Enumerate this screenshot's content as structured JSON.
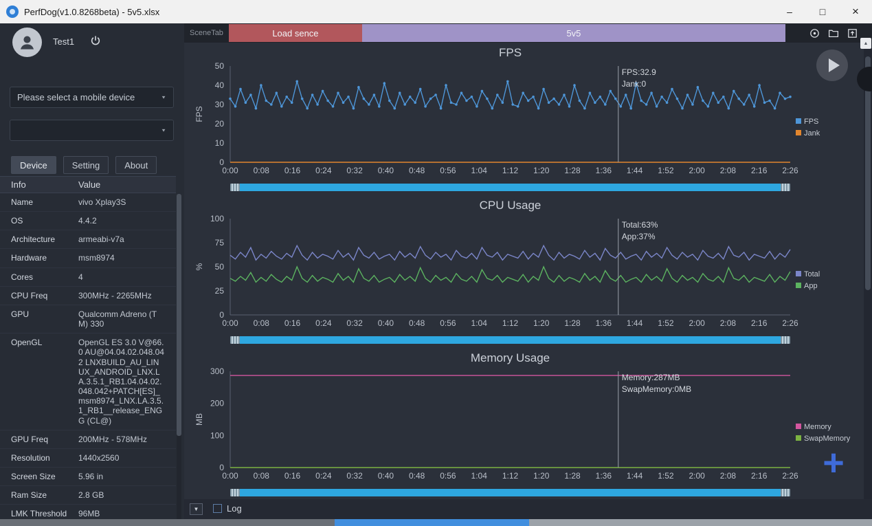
{
  "titlebar": {
    "title": "PerfDog(v1.0.8268beta) - 5v5.xlsx"
  },
  "icons": {
    "minimize": "–",
    "maximize": "□",
    "close": "×",
    "dropdown_arrow": "▼",
    "expand_arrow": "▼",
    "scroll_up": "▲",
    "plus": "+"
  },
  "sidebar": {
    "username": "Test1",
    "device_placeholder": "Please select a mobile device",
    "device_value": "",
    "tabs": [
      {
        "label": "Device",
        "active": true
      },
      {
        "label": "Setting",
        "active": false
      },
      {
        "label": "About",
        "active": false
      }
    ],
    "info_table": {
      "headers": [
        "Info",
        "Value"
      ],
      "rows": [
        {
          "info": "Name",
          "value": "vivo Xplay3S"
        },
        {
          "info": "OS",
          "value": "4.4.2"
        },
        {
          "info": "Architecture",
          "value": "armeabi-v7a"
        },
        {
          "info": "Hardware",
          "value": "msm8974"
        },
        {
          "info": "Cores",
          "value": "4"
        },
        {
          "info": "CPU Freq",
          "value": "300MHz - 2265MHz"
        },
        {
          "info": "GPU",
          "value": "Qualcomm Adreno (TM) 330"
        },
        {
          "info": "OpenGL",
          "value": "OpenGL ES 3.0 V@66.0 AU@04.04.02.048.042 LNXBUILD_AU_LINUX_ANDROID_LNX.LA.3.5.1_RB1.04.04.02.048.042+PATCH[ES]_msm8974_LNX.LA.3.5.1_RB1__release_ENGG (CL@)"
        },
        {
          "info": "GPU Freq",
          "value": "200MHz - 578MHz"
        },
        {
          "info": "Resolution",
          "value": "1440x2560"
        },
        {
          "info": "Screen Size",
          "value": "5.96 in"
        },
        {
          "info": "Ram Size",
          "value": "2.8 GB"
        },
        {
          "info": "LMK Threshold",
          "value": "96MB"
        }
      ]
    }
  },
  "scenebar": {
    "label": "SceneTab",
    "scenes": [
      {
        "label": "Load sence",
        "color": "#b2575c"
      },
      {
        "label": "5v5",
        "color": "#9f93c7"
      }
    ]
  },
  "footer": {
    "log_label": "Log"
  },
  "chart_data": [
    {
      "type": "line",
      "title": "FPS",
      "ylabel": "FPS",
      "ylim": [
        0,
        50
      ],
      "yticks": [
        0,
        10,
        20,
        30,
        40,
        50
      ],
      "x_ticks": [
        "0:00",
        "0:08",
        "0:16",
        "0:24",
        "0:32",
        "0:40",
        "0:48",
        "0:56",
        "1:04",
        "1:12",
        "1:20",
        "1:28",
        "1:36",
        "1:44",
        "1:52",
        "2:00",
        "2:08",
        "2:16",
        "2:26"
      ],
      "cursor": {
        "x_fraction": 0.693,
        "label_lines": [
          "FPS:32.9",
          "Jank:0"
        ]
      },
      "legend_position": "right",
      "series": [
        {
          "name": "FPS",
          "color": "#4e96d8",
          "markers": true,
          "values": [
            33,
            29,
            38,
            31,
            35,
            28,
            40,
            32,
            30,
            36,
            29,
            34,
            31,
            42,
            33,
            28,
            35,
            30,
            37,
            32,
            29,
            36,
            31,
            34,
            28,
            39,
            33,
            30,
            35,
            29,
            41,
            32,
            28,
            36,
            30,
            34,
            31,
            38,
            29,
            33,
            35,
            28,
            40,
            31,
            30,
            36,
            32,
            34,
            29,
            37,
            33,
            28,
            35,
            31,
            42,
            30,
            29,
            36,
            32,
            34,
            28,
            38,
            31,
            33,
            30,
            35,
            29,
            40,
            32,
            28,
            36,
            31,
            34,
            30,
            37,
            33,
            29,
            35,
            28,
            41,
            32,
            30,
            36,
            29,
            34,
            31,
            38,
            33,
            28,
            35,
            30,
            39,
            32,
            29,
            36,
            31,
            34,
            28,
            37,
            33,
            30,
            35,
            29,
            40,
            31,
            32,
            28,
            36,
            33,
            34
          ]
        },
        {
          "name": "Jank",
          "color": "#e2862e",
          "markers": false,
          "values": [
            0,
            0
          ]
        }
      ]
    },
    {
      "type": "line",
      "title": "CPU Usage",
      "ylabel": "%",
      "ylim": [
        0,
        100
      ],
      "yticks": [
        0,
        25,
        50,
        75,
        100
      ],
      "x_ticks": [
        "0:00",
        "0:08",
        "0:16",
        "0:24",
        "0:32",
        "0:40",
        "0:48",
        "0:56",
        "1:04",
        "1:12",
        "1:20",
        "1:28",
        "1:36",
        "1:44",
        "1:52",
        "2:00",
        "2:08",
        "2:16",
        "2:26"
      ],
      "cursor": {
        "x_fraction": 0.693,
        "label_lines": [
          "Total:63%",
          "App:37%"
        ]
      },
      "legend_position": "right",
      "series": [
        {
          "name": "Total",
          "color": "#7b86c9",
          "markers": false,
          "values": [
            62,
            58,
            65,
            60,
            70,
            57,
            63,
            59,
            66,
            61,
            58,
            64,
            60,
            72,
            62,
            57,
            65,
            59,
            63,
            61,
            58,
            67,
            60,
            64,
            57,
            70,
            62,
            59,
            65,
            58,
            61,
            63,
            57,
            66,
            60,
            64,
            59,
            71,
            62,
            58,
            65,
            60,
            63,
            57,
            67,
            61,
            59,
            64,
            58,
            70,
            62,
            60,
            65,
            57,
            63,
            61,
            59,
            66,
            58,
            64,
            60,
            72,
            62,
            57,
            65,
            59,
            63,
            61,
            58,
            67,
            60,
            64,
            57,
            69,
            62,
            59,
            65,
            58,
            61,
            63,
            57,
            66,
            60,
            64,
            59,
            70,
            62,
            58,
            65,
            60,
            63,
            57,
            67,
            61,
            59,
            64,
            58,
            71,
            62,
            60,
            65,
            57,
            63,
            61,
            59,
            66,
            58,
            64,
            60,
            68
          ]
        },
        {
          "name": "App",
          "color": "#5cb360",
          "markers": false,
          "values": [
            38,
            35,
            40,
            36,
            44,
            34,
            39,
            35,
            42,
            37,
            34,
            40,
            36,
            50,
            38,
            34,
            41,
            35,
            39,
            37,
            34,
            43,
            36,
            40,
            34,
            48,
            38,
            35,
            41,
            34,
            37,
            39,
            34,
            42,
            36,
            40,
            35,
            49,
            38,
            34,
            41,
            36,
            39,
            34,
            43,
            37,
            35,
            40,
            34,
            47,
            38,
            36,
            41,
            34,
            39,
            37,
            35,
            42,
            34,
            40,
            36,
            50,
            38,
            34,
            41,
            35,
            39,
            37,
            34,
            43,
            36,
            40,
            34,
            46,
            38,
            35,
            41,
            34,
            37,
            39,
            34,
            42,
            36,
            40,
            35,
            48,
            38,
            34,
            41,
            36,
            39,
            34,
            43,
            37,
            35,
            40,
            34,
            49,
            38,
            36,
            41,
            34,
            39,
            37,
            35,
            42,
            34,
            40,
            36,
            45
          ]
        }
      ]
    },
    {
      "type": "line",
      "title": "Memory Usage",
      "ylabel": "MB",
      "ylim": [
        0,
        300
      ],
      "yticks": [
        0,
        100,
        200,
        300
      ],
      "x_ticks": [
        "0:00",
        "0:08",
        "0:16",
        "0:24",
        "0:32",
        "0:40",
        "0:48",
        "0:56",
        "1:04",
        "1:12",
        "1:20",
        "1:28",
        "1:36",
        "1:44",
        "1:52",
        "2:00",
        "2:08",
        "2:16",
        "2:26"
      ],
      "cursor": {
        "x_fraction": 0.693,
        "label_lines": [
          "Memory:287MB",
          "SwapMemory:0MB"
        ]
      },
      "legend_position": "right",
      "series": [
        {
          "name": "Memory",
          "color": "#d4569f",
          "markers": false,
          "values": [
            287,
            287
          ]
        },
        {
          "name": "SwapMemory",
          "color": "#7cb342",
          "markers": false,
          "values": [
            0,
            0
          ]
        }
      ]
    }
  ]
}
